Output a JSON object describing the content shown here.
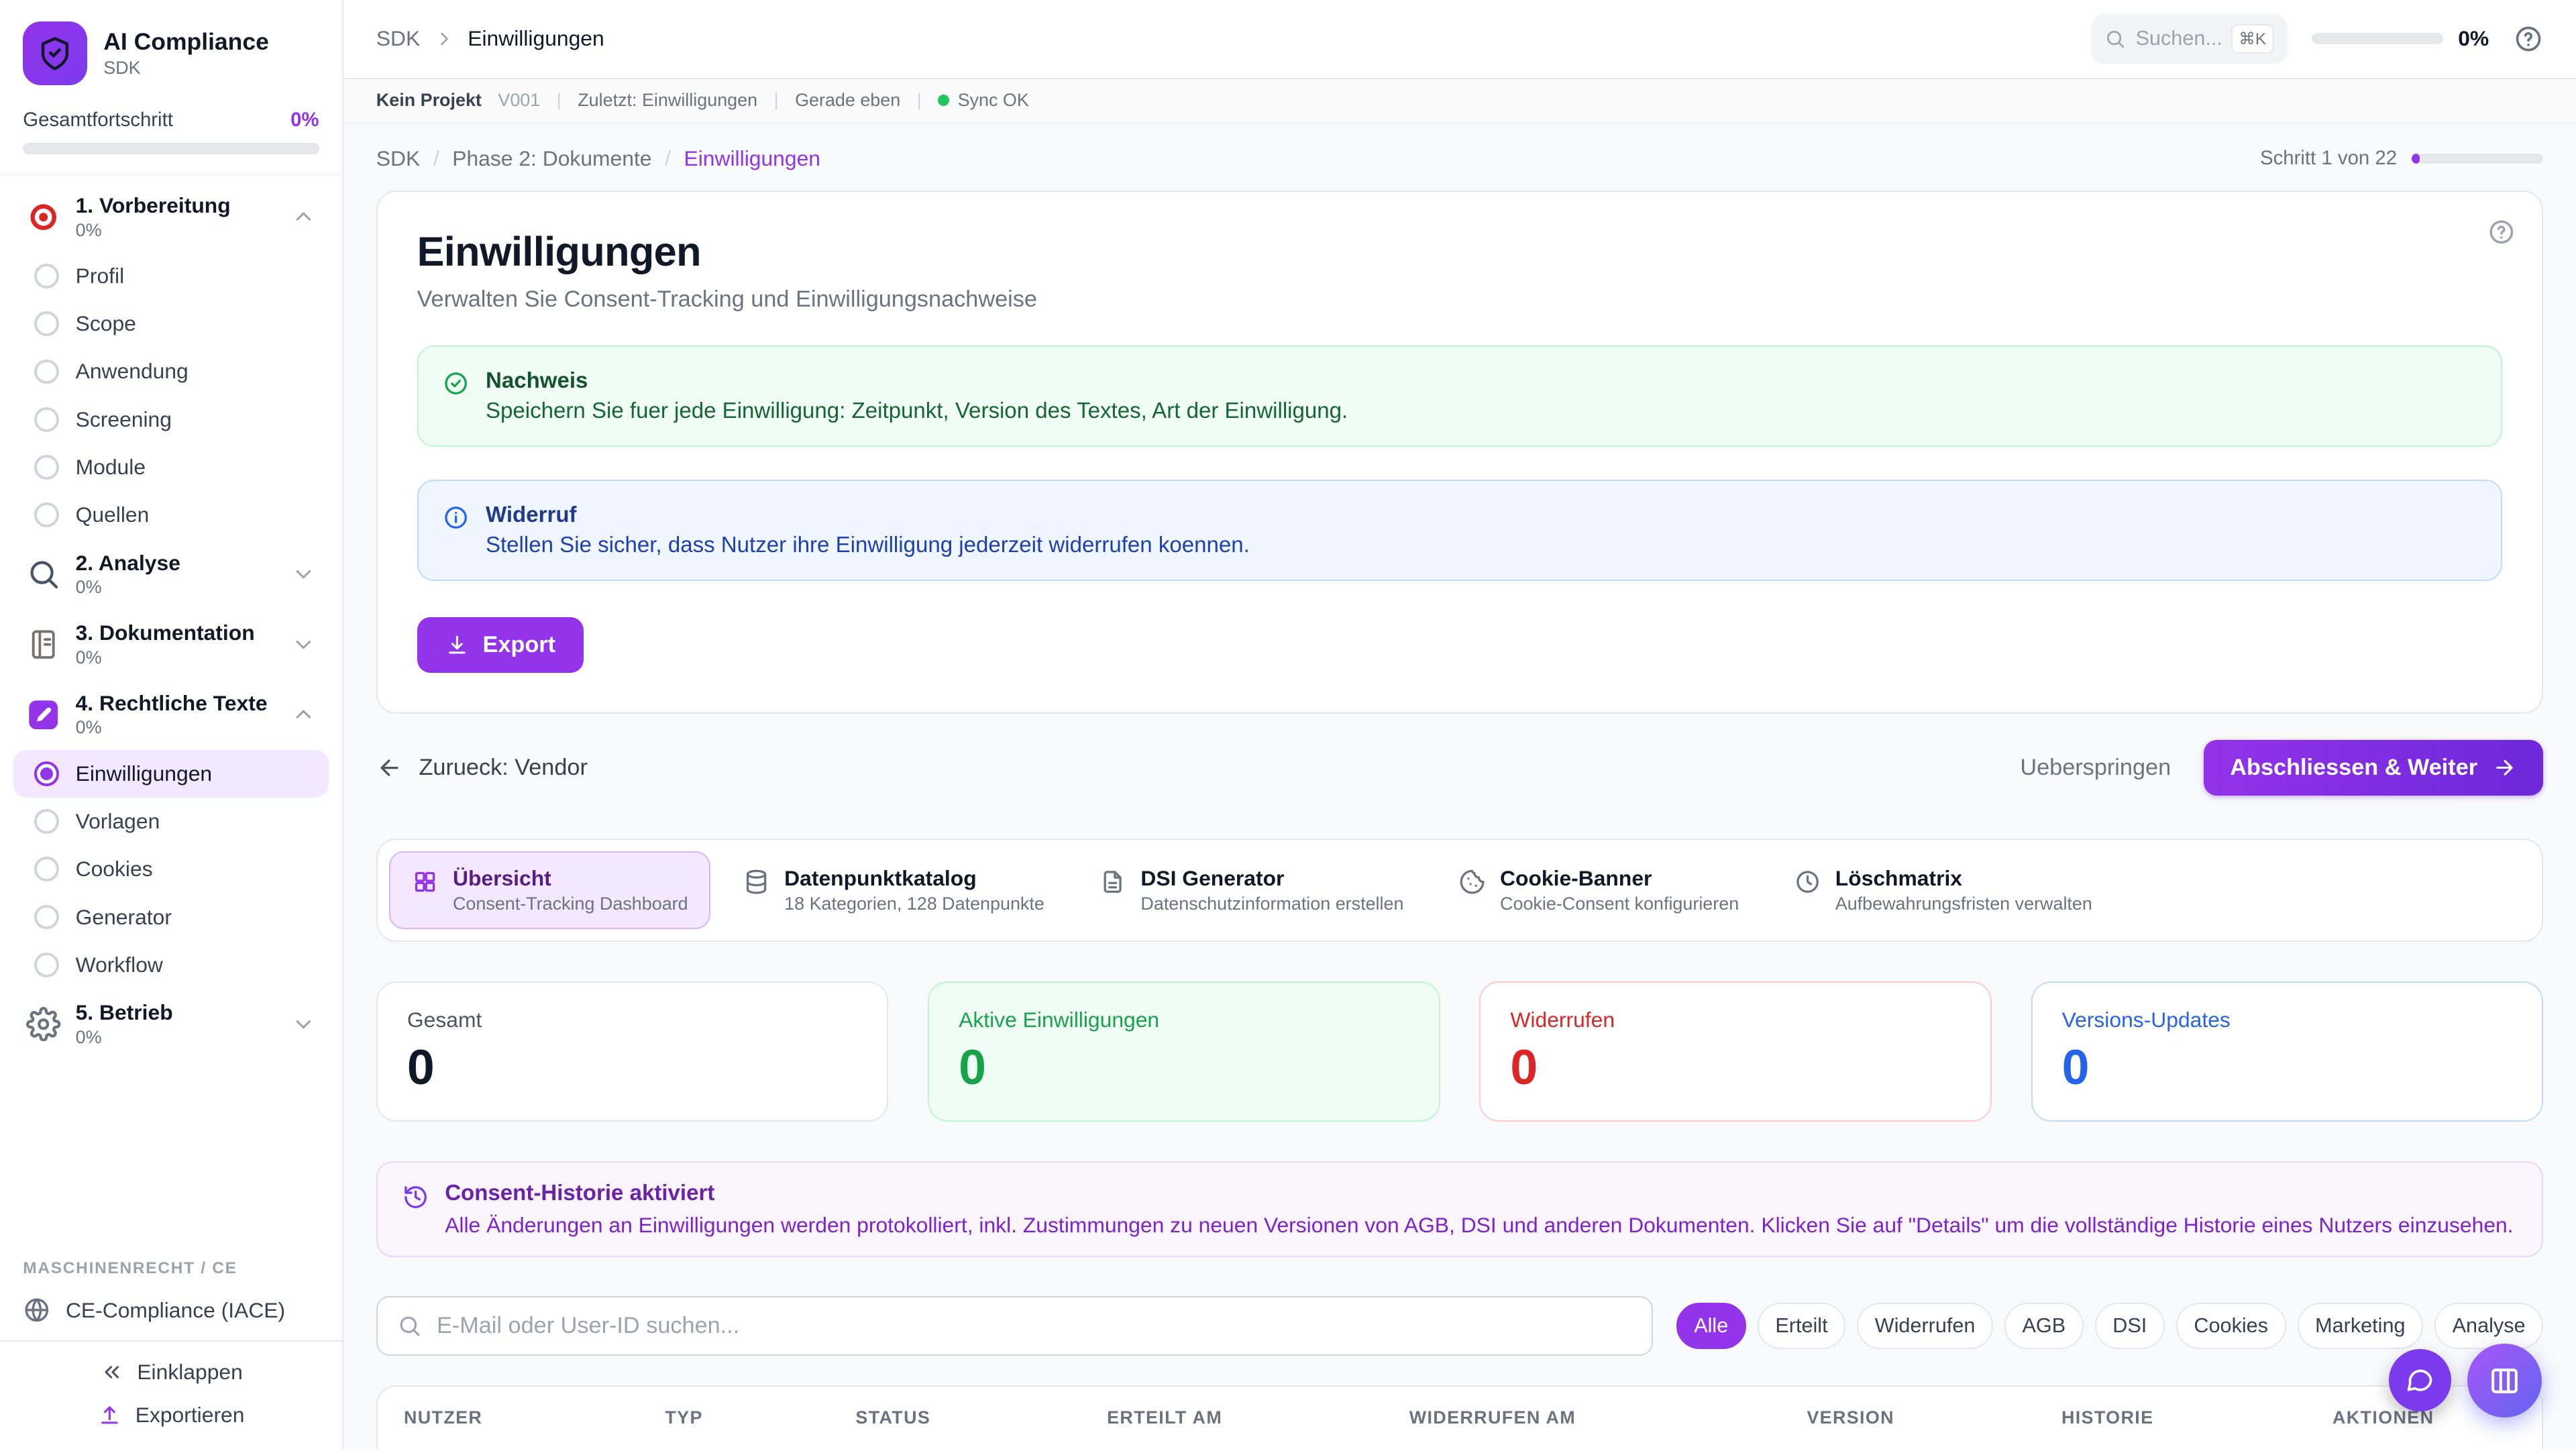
{
  "colors": {
    "accent": "#9333ea",
    "success": "#16a34a",
    "danger": "#dc2626",
    "info": "#2563eb"
  },
  "sidebar": {
    "app_title": "AI Compliance",
    "app_subtitle": "SDK",
    "progress_label": "Gesamtfortschritt",
    "progress_value": "0%",
    "sections": [
      {
        "label": "1. Vorbereitung",
        "percent": "0%",
        "icon": "target",
        "expanded": true,
        "items": [
          "Profil",
          "Scope",
          "Anwendung",
          "Screening",
          "Module",
          "Quellen"
        ]
      },
      {
        "label": "2. Analyse",
        "percent": "0%",
        "icon": "magnifier",
        "expanded": false
      },
      {
        "label": "3. Dokumentation",
        "percent": "0%",
        "icon": "notebook",
        "expanded": false
      },
      {
        "label": "4. Rechtliche Texte",
        "percent": "0%",
        "icon": "pencil-box",
        "expanded": true,
        "items": [
          "Einwilligungen",
          "Vorlagen",
          "Cookies",
          "Generator",
          "Workflow"
        ],
        "active_item": "Einwilligungen"
      },
      {
        "label": "5. Betrieb",
        "percent": "0%",
        "icon": "gear",
        "expanded": false
      }
    ],
    "footer_section_label": "MASCHINENRECHT / CE",
    "footer_item": "CE-Compliance (IACE)",
    "collapse_label": "Einklappen",
    "export_label": "Exportieren"
  },
  "topbar": {
    "breadcrumb": {
      "root": "SDK",
      "current": "Einwilligungen"
    },
    "search_placeholder": "Suchen...",
    "search_shortcut": "⌘K",
    "progress_value": "0%"
  },
  "statusbar": {
    "project": "Kein Projekt",
    "version": "V001",
    "last": "Zuletzt: Einwilligungen",
    "time": "Gerade eben",
    "sync": "Sync OK"
  },
  "main": {
    "breadcrumb": {
      "root": "SDK",
      "phase": "Phase 2: Dokumente",
      "current": "Einwilligungen"
    },
    "step_label": "Schritt 1 von 22",
    "page": {
      "title": "Einwilligungen",
      "subtitle": "Verwalten Sie Consent-Tracking und Einwilligungsnachweise",
      "notices": [
        {
          "type": "success",
          "title": "Nachweis",
          "text": "Speichern Sie fuer jede Einwilligung: Zeitpunkt, Version des Textes, Art der Einwilligung."
        },
        {
          "type": "info",
          "title": "Widerruf",
          "text": "Stellen Sie sicher, dass Nutzer ihre Einwilligung jederzeit widerrufen koennen."
        }
      ],
      "export_label": "Export"
    },
    "nav_row": {
      "back_label": "Zurueck: Vendor",
      "skip_label": "Ueberspringen",
      "next_label": "Abschliessen & Weiter"
    },
    "tabs": [
      {
        "title": "Übersicht",
        "subtitle": "Consent-Tracking Dashboard",
        "icon": "grid",
        "active": true
      },
      {
        "title": "Datenpunktkatalog",
        "subtitle": "18 Kategorien, 128 Datenpunkte",
        "icon": "database",
        "active": false
      },
      {
        "title": "DSI Generator",
        "subtitle": "Datenschutzinformation erstellen",
        "icon": "file-text",
        "active": false
      },
      {
        "title": "Cookie-Banner",
        "subtitle": "Cookie-Consent konfigurieren",
        "icon": "cookie",
        "active": false
      },
      {
        "title": "Löschmatrix",
        "subtitle": "Aufbewahrungsfristen verwalten",
        "icon": "clock",
        "active": false
      }
    ],
    "stats": [
      {
        "label": "Gesamt",
        "value": "0",
        "color": "default"
      },
      {
        "label": "Aktive Einwilligungen",
        "value": "0",
        "color": "green"
      },
      {
        "label": "Widerrufen",
        "value": "0",
        "color": "red"
      },
      {
        "label": "Versions-Updates",
        "value": "0",
        "color": "blue"
      }
    ],
    "history_banner": {
      "title": "Consent-Historie aktiviert",
      "text": "Alle Änderungen an Einwilligungen werden protokolliert, inkl. Zustimmungen zu neuen Versionen von AGB, DSI und anderen Dokumenten. Klicken Sie auf \"Details\" um die vollständige Historie eines Nutzers einzusehen."
    },
    "filter": {
      "search_placeholder": "E-Mail oder User-ID suchen...",
      "chips": [
        "Alle",
        "Erteilt",
        "Widerrufen",
        "AGB",
        "DSI",
        "Cookies",
        "Marketing",
        "Analyse"
      ],
      "active_chip": "Alle"
    },
    "table": {
      "headers": [
        "NUTZER",
        "TYP",
        "STATUS",
        "ERTEILT AM",
        "WIDERRUFEN AM",
        "VERSION",
        "HISTORIE",
        "AKTIONEN"
      ]
    }
  }
}
